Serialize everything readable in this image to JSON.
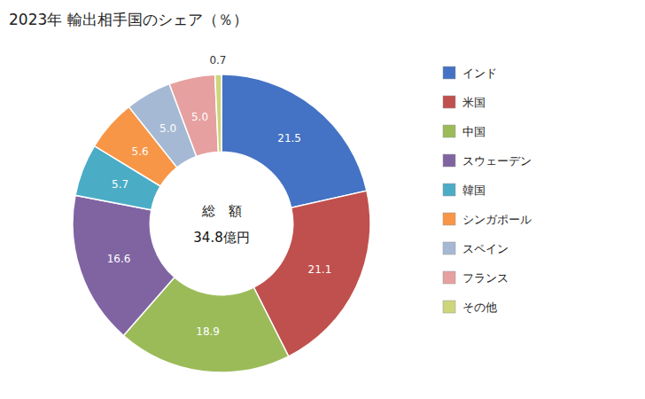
{
  "chart_data": {
    "type": "donut",
    "title": "2023年 輸出相手国のシェア（％）",
    "annotations": [
      "総　額",
      "34.8億円"
    ],
    "categories": [
      "インド",
      "米国",
      "中国",
      "スウェーデン",
      "韓国",
      "シンガポール",
      "スペイン",
      "フランス",
      "その他"
    ],
    "values": [
      21.5,
      21.1,
      18.9,
      16.6,
      5.7,
      5.6,
      5.0,
      5.0,
      0.7
    ],
    "value_labels": [
      "21.5",
      "21.1",
      "18.9",
      "16.6",
      "5.7",
      "5.6",
      "5.0",
      "5.0",
      "0.7"
    ],
    "colors": [
      "#4472C4",
      "#C0504D",
      "#9BBB59",
      "#8064A2",
      "#4BACC6",
      "#F79646",
      "#A5B9D4",
      "#E6A0A0",
      "#CDD67A"
    ],
    "data_labels": true,
    "legend": "right"
  }
}
